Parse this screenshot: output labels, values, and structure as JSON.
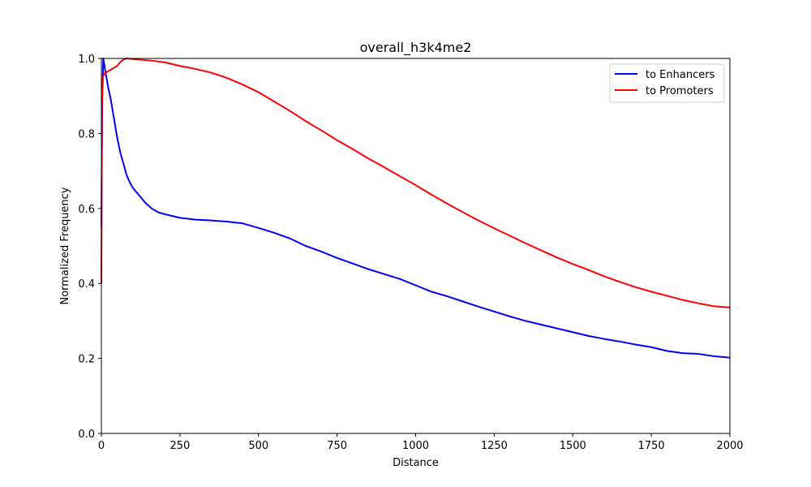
{
  "chart_data": {
    "type": "line",
    "title": "overall_h3k4me2",
    "xlabel": "Distance",
    "ylabel": "Normalized Frequency",
    "xlim": [
      0,
      2000
    ],
    "ylim": [
      0.0,
      1.0
    ],
    "xticks": [
      "0",
      "250",
      "500",
      "750",
      "1000",
      "1250",
      "1500",
      "1750",
      "2000"
    ],
    "yticks": [
      "0.0",
      "0.2",
      "0.4",
      "0.6",
      "0.8",
      "1.0"
    ],
    "grid": false,
    "legend_position": "top-right",
    "series": [
      {
        "name": "to Enhancers",
        "color": "#0000ff",
        "points": [
          [
            0,
            0.55
          ],
          [
            3,
            0.9
          ],
          [
            6,
            1.0
          ],
          [
            12,
            0.97
          ],
          [
            20,
            0.93
          ],
          [
            30,
            0.89
          ],
          [
            40,
            0.84
          ],
          [
            50,
            0.79
          ],
          [
            60,
            0.75
          ],
          [
            70,
            0.72
          ],
          [
            80,
            0.69
          ],
          [
            90,
            0.67
          ],
          [
            100,
            0.655
          ],
          [
            120,
            0.635
          ],
          [
            140,
            0.615
          ],
          [
            160,
            0.6
          ],
          [
            180,
            0.59
          ],
          [
            200,
            0.585
          ],
          [
            250,
            0.575
          ],
          [
            300,
            0.57
          ],
          [
            350,
            0.568
          ],
          [
            400,
            0.565
          ],
          [
            450,
            0.56
          ],
          [
            500,
            0.548
          ],
          [
            550,
            0.535
          ],
          [
            600,
            0.52
          ],
          [
            650,
            0.5
          ],
          [
            700,
            0.485
          ],
          [
            750,
            0.468
          ],
          [
            800,
            0.453
          ],
          [
            850,
            0.438
          ],
          [
            900,
            0.425
          ],
          [
            950,
            0.412
          ],
          [
            1000,
            0.395
          ],
          [
            1050,
            0.378
          ],
          [
            1100,
            0.366
          ],
          [
            1150,
            0.352
          ],
          [
            1200,
            0.338
          ],
          [
            1250,
            0.325
          ],
          [
            1300,
            0.312
          ],
          [
            1350,
            0.3
          ],
          [
            1400,
            0.29
          ],
          [
            1450,
            0.28
          ],
          [
            1500,
            0.27
          ],
          [
            1550,
            0.26
          ],
          [
            1600,
            0.252
          ],
          [
            1650,
            0.245
          ],
          [
            1700,
            0.237
          ],
          [
            1750,
            0.23
          ],
          [
            1800,
            0.22
          ],
          [
            1850,
            0.214
          ],
          [
            1900,
            0.212
          ],
          [
            1950,
            0.206
          ],
          [
            2000,
            0.202
          ]
        ]
      },
      {
        "name": "to Promoters",
        "color": "#ff0000",
        "points": [
          [
            0,
            0.4
          ],
          [
            2,
            0.88
          ],
          [
            5,
            0.95
          ],
          [
            10,
            0.96
          ],
          [
            20,
            0.965
          ],
          [
            30,
            0.97
          ],
          [
            40,
            0.975
          ],
          [
            50,
            0.98
          ],
          [
            60,
            0.99
          ],
          [
            70,
            0.997
          ],
          [
            80,
            1.0
          ],
          [
            100,
            0.998
          ],
          [
            150,
            0.995
          ],
          [
            200,
            0.99
          ],
          [
            250,
            0.98
          ],
          [
            300,
            0.972
          ],
          [
            350,
            0.962
          ],
          [
            400,
            0.948
          ],
          [
            450,
            0.93
          ],
          [
            500,
            0.91
          ],
          [
            550,
            0.885
          ],
          [
            600,
            0.86
          ],
          [
            650,
            0.833
          ],
          [
            700,
            0.808
          ],
          [
            750,
            0.782
          ],
          [
            800,
            0.758
          ],
          [
            850,
            0.733
          ],
          [
            900,
            0.71
          ],
          [
            950,
            0.686
          ],
          [
            1000,
            0.662
          ],
          [
            1050,
            0.637
          ],
          [
            1100,
            0.613
          ],
          [
            1150,
            0.59
          ],
          [
            1200,
            0.568
          ],
          [
            1250,
            0.547
          ],
          [
            1300,
            0.527
          ],
          [
            1350,
            0.507
          ],
          [
            1400,
            0.488
          ],
          [
            1450,
            0.469
          ],
          [
            1500,
            0.452
          ],
          [
            1550,
            0.436
          ],
          [
            1600,
            0.419
          ],
          [
            1650,
            0.404
          ],
          [
            1700,
            0.39
          ],
          [
            1750,
            0.378
          ],
          [
            1800,
            0.367
          ],
          [
            1850,
            0.356
          ],
          [
            1900,
            0.347
          ],
          [
            1950,
            0.339
          ],
          [
            2000,
            0.336
          ]
        ]
      }
    ]
  }
}
